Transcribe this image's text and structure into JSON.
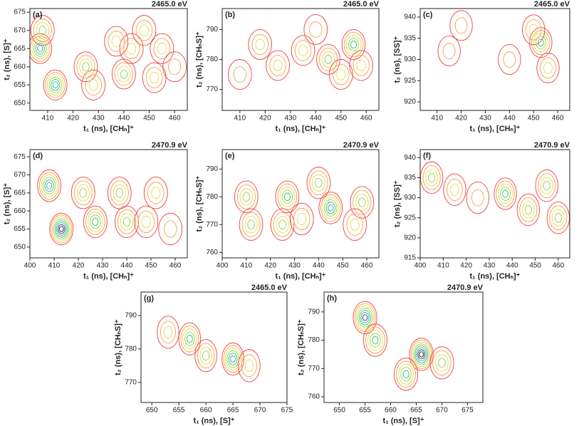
{
  "chart_data": [
    {
      "type": "contour",
      "label": "(a)",
      "title": "2465.0 eV",
      "xlabel": "t₁ (ns), [CHₙ]⁺",
      "ylabel": "t₂ (ns), [S]⁺",
      "xlim": [
        403,
        465
      ],
      "xticks": [
        410,
        420,
        430,
        440,
        450,
        460
      ],
      "ylim": [
        648,
        676
      ],
      "yticks": [
        650,
        655,
        660,
        665,
        670,
        675
      ],
      "x": [
        407,
        413,
        408,
        425,
        428,
        440,
        443,
        448,
        455,
        437,
        460,
        452
      ],
      "y": [
        665,
        655,
        670,
        660,
        655,
        658,
        665,
        670,
        665,
        667,
        660,
        657
      ],
      "z": [
        6,
        6,
        4,
        4,
        3,
        4,
        3,
        3,
        3,
        3,
        2,
        3
      ],
      "colors": [
        "#f04040",
        "#f5a04a",
        "#e6d84a",
        "#8fd14f",
        "#2fbf5a",
        "#3aa0b4",
        "#2a3a80",
        "#111111"
      ]
    },
    {
      "type": "contour",
      "label": "(b)",
      "title": "2465.0 eV",
      "xlabel": "t₁ (ns), [CHₙ]⁺",
      "ylabel": "t₂ (ns), [CHₙS]⁺",
      "xlim": [
        403,
        465
      ],
      "xticks": [
        410,
        420,
        430,
        440,
        450,
        460
      ],
      "ylim": [
        763,
        797
      ],
      "yticks": [
        770,
        780,
        790
      ],
      "x": [
        418,
        425,
        435,
        445,
        455,
        450,
        458,
        440,
        410
      ],
      "y": [
        785,
        778,
        783,
        780,
        785,
        775,
        778,
        790,
        775
      ],
      "z": [
        3,
        3,
        3,
        4,
        5,
        3,
        3,
        2,
        2
      ],
      "colors": [
        "#f04040",
        "#f5a04a",
        "#e6d84a",
        "#8fd14f",
        "#2fbf5a",
        "#3aa0b4",
        "#2a3a80",
        "#111111"
      ]
    },
    {
      "type": "contour",
      "label": "(c)",
      "title": "2465.0 eV",
      "xlabel": "t₁ (ns), [CHₙ]⁺",
      "ylabel": "t₂ (ns), [SS]⁺",
      "xlim": [
        403,
        465
      ],
      "xticks": [
        410,
        420,
        430,
        440,
        450,
        460
      ],
      "ylim": [
        918,
        942
      ],
      "yticks": [
        920,
        925,
        930,
        935,
        940
      ],
      "x": [
        453,
        456,
        450,
        420,
        415,
        440
      ],
      "y": [
        934,
        928,
        937,
        938,
        932,
        930
      ],
      "z": [
        5,
        3,
        3,
        2,
        2,
        2
      ],
      "colors": [
        "#f04040",
        "#f5a04a",
        "#e6d84a",
        "#8fd14f",
        "#2fbf5a",
        "#3aa0b4",
        "#2a3a80",
        "#111111"
      ]
    },
    {
      "type": "contour",
      "label": "(d)",
      "title": "2470.9 eV",
      "xlabel": "t₁ (ns), [CHₙ]⁺",
      "ylabel": "t₂ (ns), [S]⁺",
      "xlim": [
        400,
        465
      ],
      "xticks": [
        400,
        410,
        420,
        430,
        440,
        450,
        460
      ],
      "ylim": [
        647,
        677
      ],
      "yticks": [
        650,
        655,
        660,
        665,
        670,
        675
      ],
      "x": [
        408,
        413,
        422,
        427,
        437,
        440,
        452,
        448,
        458
      ],
      "y": [
        667,
        655,
        665,
        657,
        665,
        657,
        665,
        657,
        655
      ],
      "z": [
        6,
        8,
        4,
        5,
        4,
        4,
        3,
        3,
        2
      ],
      "colors": [
        "#f04040",
        "#f5a04a",
        "#e6d84a",
        "#8fd14f",
        "#2fbf5a",
        "#3aa0b4",
        "#2a3a80",
        "#111111"
      ]
    },
    {
      "type": "contour",
      "label": "(e)",
      "title": "2470.9 eV",
      "xlabel": "t₁ (ns), [CHₙ]⁺",
      "ylabel": "t₂ (ns), [CHₙS]⁺",
      "xlim": [
        400,
        465
      ],
      "xticks": [
        400,
        410,
        420,
        430,
        440,
        450,
        460
      ],
      "ylim": [
        758,
        797
      ],
      "yticks": [
        760,
        770,
        780,
        790
      ],
      "x": [
        410,
        412,
        427,
        425,
        445,
        440,
        458,
        433,
        455
      ],
      "y": [
        780,
        770,
        780,
        770,
        776,
        785,
        778,
        772,
        770
      ],
      "z": [
        4,
        4,
        5,
        4,
        6,
        4,
        4,
        3,
        3
      ],
      "colors": [
        "#f04040",
        "#f5a04a",
        "#e6d84a",
        "#8fd14f",
        "#2fbf5a",
        "#3aa0b4",
        "#2a3a80",
        "#111111"
      ]
    },
    {
      "type": "contour",
      "label": "(f)",
      "title": "2470.9 eV",
      "xlabel": "t₁ (ns), [CHₙ]⁺",
      "ylabel": "t₂ (ns), [SS]⁺",
      "xlim": [
        400,
        465
      ],
      "xticks": [
        400,
        410,
        420,
        430,
        440,
        450,
        460
      ],
      "ylim": [
        915,
        942
      ],
      "yticks": [
        915,
        920,
        925,
        930,
        935,
        940
      ],
      "x": [
        405,
        415,
        437,
        447,
        455,
        460,
        425
      ],
      "y": [
        935,
        932,
        931,
        927,
        933,
        925,
        930
      ],
      "z": [
        4,
        3,
        5,
        4,
        4,
        4,
        2
      ],
      "colors": [
        "#f04040",
        "#f5a04a",
        "#e6d84a",
        "#8fd14f",
        "#2fbf5a",
        "#3aa0b4",
        "#2a3a80",
        "#111111"
      ]
    },
    {
      "type": "contour",
      "label": "(g)",
      "title": "2465.0 eV",
      "xlabel": "t₁ (ns), [S]⁺",
      "ylabel": "t₂ (ns), [CHₙS]⁺",
      "xlim": [
        648,
        675
      ],
      "xticks": [
        650,
        655,
        660,
        665,
        670,
        675
      ],
      "ylim": [
        764,
        797
      ],
      "yticks": [
        770,
        780,
        790
      ],
      "x": [
        657,
        665,
        660,
        653,
        668
      ],
      "y": [
        783,
        777,
        778,
        785,
        775
      ],
      "z": [
        5,
        6,
        4,
        3,
        3
      ],
      "colors": [
        "#f04040",
        "#f5a04a",
        "#e6d84a",
        "#8fd14f",
        "#2fbf5a",
        "#3aa0b4",
        "#2a3a80",
        "#111111"
      ]
    },
    {
      "type": "contour",
      "label": "(h)",
      "title": "2470.9 eV",
      "xlabel": "t₁ (ns), [S]⁺",
      "ylabel": "t₂ (ns), [CHₙS]⁺",
      "xlim": [
        647,
        678
      ],
      "xticks": [
        650,
        655,
        660,
        665,
        670,
        675
      ],
      "ylim": [
        758,
        797
      ],
      "yticks": [
        760,
        770,
        780,
        790
      ],
      "x": [
        655,
        657,
        666,
        663,
        670
      ],
      "y": [
        788,
        780,
        775,
        768,
        772
      ],
      "z": [
        7,
        5,
        8,
        5,
        4
      ],
      "colors": [
        "#f04040",
        "#f5a04a",
        "#e6d84a",
        "#8fd14f",
        "#2fbf5a",
        "#3aa0b4",
        "#2a3a80",
        "#111111"
      ]
    }
  ]
}
